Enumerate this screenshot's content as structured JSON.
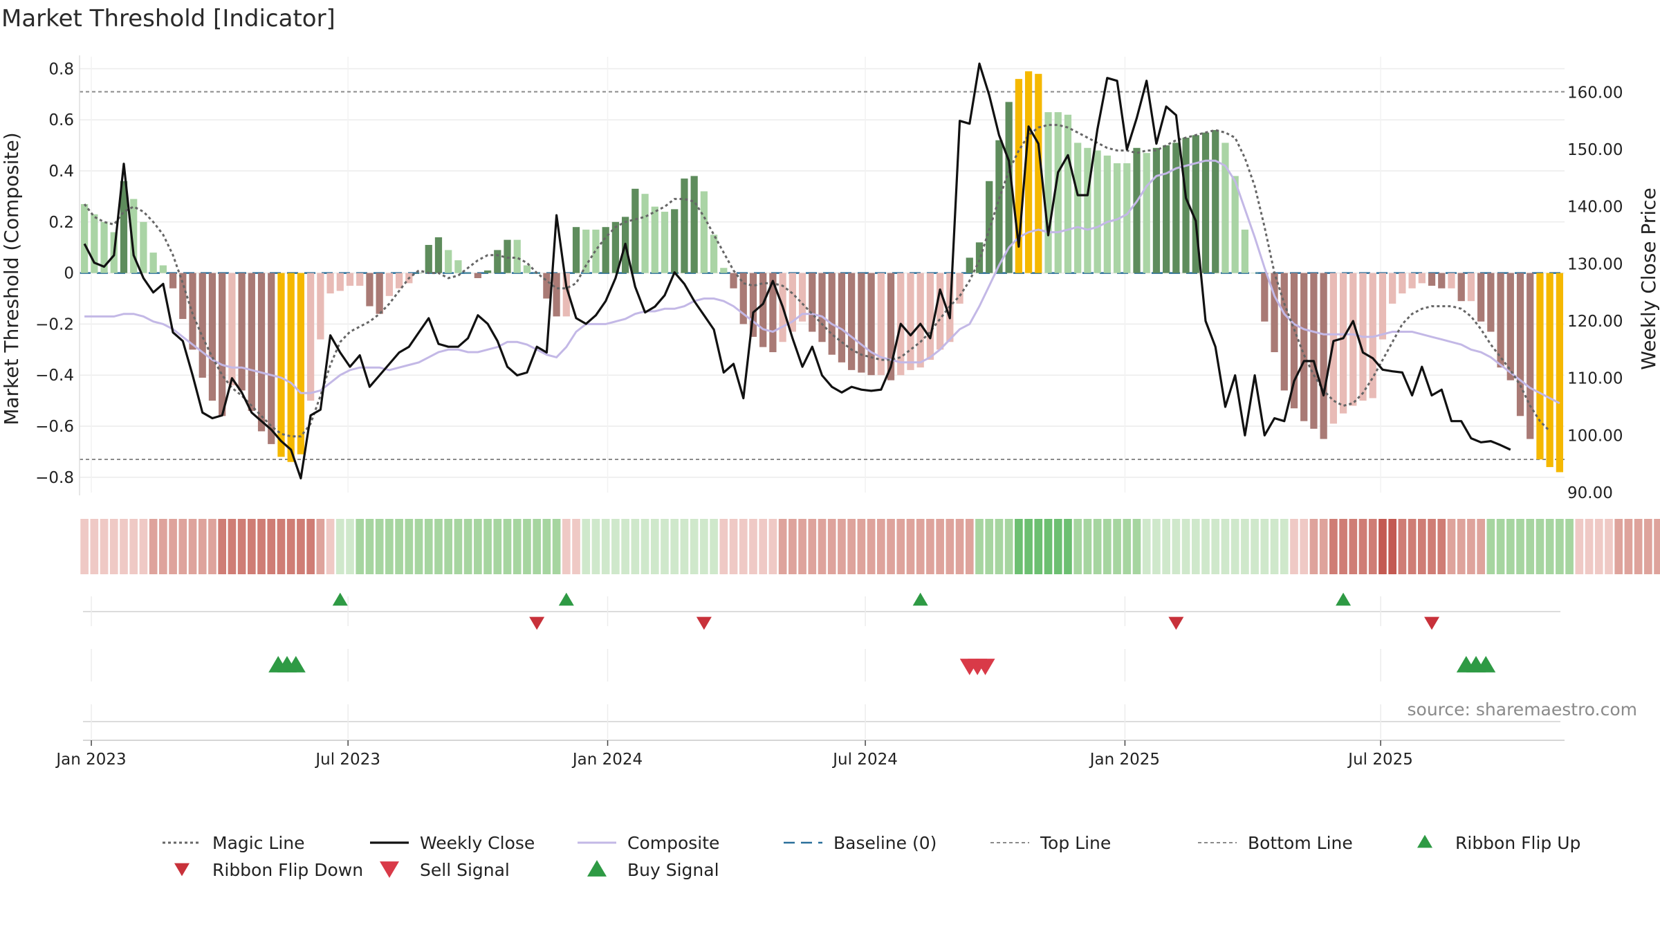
{
  "chart_data": {
    "type": "bar",
    "title": "Market Threshold [Indicator]",
    "ylabel": "Market Threshold (Composite)",
    "ylabel_right": "Weekly Close Price",
    "ylim": [
      -0.86,
      0.82
    ],
    "ylim_right": [
      90,
      165
    ],
    "y_ticks": [
      0.8,
      0.6,
      0.4,
      0.2,
      0,
      -0.2,
      -0.4,
      -0.6,
      -0.8
    ],
    "y_tick_labels": [
      "0.8",
      "0.6",
      "0.4",
      "0.2",
      "0",
      "−0.2",
      "−0.4",
      "−0.6",
      "−0.8"
    ],
    "y_right_ticks": [
      160,
      150,
      140,
      130,
      120,
      110,
      100,
      90
    ],
    "y_right_tick_labels": [
      "160.00",
      "150.00",
      "140.00",
      "130.00",
      "120.00",
      "110.00",
      "100.00",
      "90.00"
    ],
    "x_tick_labels": [
      "Jan 2023",
      "Jul 2023",
      "Jan 2024",
      "Jul 2024",
      "Jan 2025",
      "Jul 2025"
    ],
    "x_tick_weeks": [
      1.2,
      27.3,
      53.7,
      79.9,
      106.3,
      132.3
    ],
    "top_line": 0.71,
    "bottom_line": -0.73,
    "source": "source: sharemaestro.com",
    "grid": true,
    "legend_position": "bottom",
    "colors": {
      "strong_green": "#5e8c5c",
      "light_green": "#aad4a5",
      "strong_red": "#a97a75",
      "light_red": "#e8bbb6",
      "extreme": "#f5b800",
      "magic": "#666666",
      "close": "#111111",
      "composite": "#c3b8e6",
      "baseline": "#2a6f9a",
      "flip_up": "#2e9a44",
      "flip_down": "#c8313a",
      "buy": "#2e9a44",
      "sell": "#d93a48"
    },
    "composite_bars": [
      0.27,
      0.23,
      0.2,
      0.16,
      0.36,
      0.29,
      0.2,
      0.08,
      0.03,
      -0.06,
      -0.18,
      -0.3,
      -0.41,
      -0.5,
      -0.56,
      -0.44,
      -0.46,
      -0.54,
      -0.62,
      -0.67,
      -0.72,
      -0.74,
      -0.71,
      -0.5,
      -0.26,
      -0.08,
      -0.07,
      -0.05,
      -0.05,
      -0.13,
      -0.16,
      -0.09,
      -0.06,
      -0.04,
      0.0,
      0.11,
      0.14,
      0.09,
      0.05,
      0.0,
      -0.02,
      0.01,
      0.09,
      0.13,
      0.13,
      0.03,
      0.0,
      -0.1,
      -0.17,
      -0.17,
      0.18,
      0.17,
      0.17,
      0.18,
      0.2,
      0.22,
      0.33,
      0.31,
      0.26,
      0.24,
      0.25,
      0.37,
      0.38,
      0.32,
      0.15,
      0.02,
      -0.06,
      -0.2,
      -0.25,
      -0.29,
      -0.31,
      -0.27,
      -0.23,
      -0.19,
      -0.23,
      -0.27,
      -0.32,
      -0.35,
      -0.38,
      -0.39,
      -0.4,
      -0.4,
      -0.42,
      -0.4,
      -0.38,
      -0.37,
      -0.34,
      -0.3,
      -0.27,
      -0.12,
      0.06,
      0.12,
      0.36,
      0.52,
      0.67,
      0.76,
      0.79,
      0.78,
      0.63,
      0.63,
      0.62,
      0.51,
      0.49,
      0.48,
      0.46,
      0.43,
      0.43,
      0.49,
      0.47,
      0.49,
      0.5,
      0.51,
      0.53,
      0.54,
      0.55,
      0.56,
      0.51,
      0.38,
      0.17,
      0.0,
      -0.19,
      -0.31,
      -0.46,
      -0.53,
      -0.58,
      -0.61,
      -0.65,
      -0.59,
      -0.55,
      -0.52,
      -0.5,
      -0.49,
      -0.26,
      -0.12,
      -0.08,
      -0.06,
      -0.04,
      -0.05,
      -0.06,
      -0.06,
      -0.11,
      -0.11,
      -0.19,
      -0.23,
      -0.37,
      -0.42,
      -0.56,
      -0.65,
      -0.73,
      -0.76,
      -0.78
    ],
    "weekly_close": [
      133.5,
      130.2,
      129.5,
      131.5,
      147.5,
      131.5,
      127.5,
      125,
      126.5,
      118,
      116.5,
      110.5,
      104,
      103,
      103.5,
      110,
      107.5,
      104,
      102.5,
      101,
      99,
      97.5,
      92.5,
      103.5,
      104.5,
      117.5,
      114.5,
      112,
      114,
      108.5,
      110.5,
      112.5,
      114.5,
      115.5,
      118,
      120.5,
      116,
      115.5,
      115.5,
      117,
      121,
      119.5,
      116.5,
      112,
      110.5,
      111,
      115.5,
      114.5,
      138.5,
      126,
      120.5,
      119.5,
      121,
      123.5,
      127.5,
      133.5,
      126,
      121.5,
      122.5,
      124.5,
      128.5,
      126.5,
      123.5,
      121,
      118.5,
      111,
      112.5,
      106.5,
      121.5,
      123,
      127,
      122.5,
      117,
      112,
      115.5,
      110.5,
      108.5,
      107.5,
      108.5,
      108,
      107.8,
      108,
      112,
      119.5,
      117.5,
      119.5,
      117,
      125.5,
      120.5,
      155,
      154.5,
      165,
      159.5,
      152.5,
      148,
      133,
      154,
      151,
      135,
      146,
      149,
      142,
      142,
      153.5,
      162.5,
      162,
      150,
      155.5,
      162,
      151,
      157.5,
      156,
      141.5,
      137.5,
      120,
      115.5,
      105,
      110.5,
      100,
      110.5,
      100,
      103,
      102.5,
      109.5,
      113,
      113,
      107,
      116.5,
      117,
      120,
      114.5,
      113.5,
      111.5,
      111.2,
      111,
      107,
      112,
      107,
      108,
      102.5,
      102.5,
      99.5,
      98.8,
      99,
      98.3,
      97.5
    ],
    "composite_line": [
      -0.17,
      -0.17,
      -0.17,
      -0.17,
      -0.16,
      -0.16,
      -0.17,
      -0.19,
      -0.2,
      -0.22,
      -0.25,
      -0.28,
      -0.31,
      -0.34,
      -0.36,
      -0.37,
      -0.37,
      -0.38,
      -0.39,
      -0.4,
      -0.41,
      -0.43,
      -0.47,
      -0.47,
      -0.46,
      -0.43,
      -0.4,
      -0.38,
      -0.37,
      -0.37,
      -0.37,
      -0.38,
      -0.37,
      -0.36,
      -0.35,
      -0.33,
      -0.31,
      -0.3,
      -0.3,
      -0.31,
      -0.31,
      -0.3,
      -0.29,
      -0.27,
      -0.27,
      -0.28,
      -0.3,
      -0.32,
      -0.33,
      -0.29,
      -0.23,
      -0.2,
      -0.2,
      -0.2,
      -0.19,
      -0.18,
      -0.16,
      -0.15,
      -0.15,
      -0.14,
      -0.14,
      -0.13,
      -0.11,
      -0.1,
      -0.1,
      -0.11,
      -0.13,
      -0.16,
      -0.19,
      -0.22,
      -0.23,
      -0.21,
      -0.19,
      -0.16,
      -0.16,
      -0.17,
      -0.2,
      -0.22,
      -0.25,
      -0.28,
      -0.31,
      -0.33,
      -0.34,
      -0.35,
      -0.35,
      -0.35,
      -0.33,
      -0.3,
      -0.26,
      -0.22,
      -0.2,
      -0.13,
      -0.05,
      0.03,
      0.1,
      0.14,
      0.16,
      0.17,
      0.16,
      0.16,
      0.17,
      0.18,
      0.17,
      0.18,
      0.2,
      0.21,
      0.23,
      0.28,
      0.34,
      0.38,
      0.39,
      0.41,
      0.42,
      0.43,
      0.44,
      0.44,
      0.42,
      0.36,
      0.25,
      0.14,
      0.02,
      -0.09,
      -0.16,
      -0.2,
      -0.22,
      -0.23,
      -0.24,
      -0.24,
      -0.24,
      -0.24,
      -0.25,
      -0.25,
      -0.24,
      -0.23,
      -0.23,
      -0.23,
      -0.24,
      -0.25,
      -0.26,
      -0.27,
      -0.28,
      -0.3,
      -0.31,
      -0.33,
      -0.36,
      -0.39,
      -0.42,
      -0.45,
      -0.47,
      -0.49,
      -0.51
    ],
    "magic_line": [
      0.27,
      0.22,
      0.2,
      0.19,
      0.24,
      0.26,
      0.24,
      0.2,
      0.15,
      0.07,
      -0.04,
      -0.16,
      -0.25,
      -0.33,
      -0.4,
      -0.45,
      -0.48,
      -0.52,
      -0.56,
      -0.6,
      -0.63,
      -0.64,
      -0.64,
      -0.59,
      -0.48,
      -0.36,
      -0.27,
      -0.23,
      -0.21,
      -0.19,
      -0.16,
      -0.12,
      -0.07,
      -0.02,
      0.01,
      0.0,
      0.0,
      -0.02,
      -0.01,
      0.02,
      0.05,
      0.07,
      0.07,
      0.06,
      0.06,
      0.04,
      0.0,
      -0.03,
      -0.06,
      -0.06,
      -0.04,
      0.03,
      0.09,
      0.14,
      0.18,
      0.2,
      0.21,
      0.22,
      0.24,
      0.26,
      0.29,
      0.29,
      0.28,
      0.22,
      0.15,
      0.08,
      0.01,
      -0.04,
      -0.05,
      -0.04,
      -0.04,
      -0.05,
      -0.08,
      -0.12,
      -0.16,
      -0.2,
      -0.24,
      -0.27,
      -0.3,
      -0.32,
      -0.33,
      -0.34,
      -0.34,
      -0.33,
      -0.3,
      -0.27,
      -0.23,
      -0.18,
      -0.13,
      -0.09,
      -0.03,
      0.05,
      0.17,
      0.29,
      0.4,
      0.48,
      0.54,
      0.57,
      0.58,
      0.58,
      0.57,
      0.55,
      0.53,
      0.51,
      0.49,
      0.48,
      0.48,
      0.47,
      0.48,
      0.48,
      0.5,
      0.52,
      0.53,
      0.54,
      0.55,
      0.56,
      0.55,
      0.53,
      0.45,
      0.34,
      0.18,
      0.0,
      -0.12,
      -0.22,
      -0.32,
      -0.4,
      -0.46,
      -0.5,
      -0.52,
      -0.51,
      -0.47,
      -0.41,
      -0.34,
      -0.27,
      -0.2,
      -0.16,
      -0.14,
      -0.13,
      -0.13,
      -0.13,
      -0.14,
      -0.17,
      -0.22,
      -0.28,
      -0.33,
      -0.38,
      -0.44,
      -0.52,
      -0.58,
      -0.62
    ],
    "ribbon": [
      -1,
      -1,
      -1,
      -1,
      -1,
      -1,
      -1,
      -2,
      -2,
      -2,
      -2,
      -2,
      -2,
      -2,
      -3,
      -3,
      -3,
      -3,
      -3,
      -3,
      -3,
      -3,
      -3,
      -3,
      -2,
      -1,
      1,
      1,
      2,
      2,
      2,
      2,
      2,
      2,
      2,
      2,
      2,
      2,
      2,
      2,
      2,
      2,
      2,
      2,
      2,
      2,
      2,
      2,
      2,
      -1,
      -1,
      1,
      1,
      1,
      1,
      1,
      1,
      1,
      1,
      1,
      1,
      1,
      1,
      1,
      1,
      -1,
      -1,
      -1,
      -1,
      -1,
      -1,
      -2,
      -2,
      -2,
      -2,
      -2,
      -2,
      -2,
      -2,
      -2,
      -2,
      -2,
      -2,
      -2,
      -2,
      -2,
      -2,
      -2,
      -2,
      -2,
      -2,
      2,
      2,
      2,
      2,
      3,
      3,
      3,
      3,
      3,
      3,
      2,
      2,
      2,
      2,
      2,
      2,
      2,
      1,
      1,
      1,
      1,
      1,
      1,
      1,
      1,
      1,
      1,
      1,
      1,
      1,
      1,
      1,
      -1,
      -1,
      -2,
      -2,
      -3,
      -3,
      -3,
      -3,
      -3,
      -4,
      -4,
      -3,
      -3,
      -3,
      -3,
      -3,
      -2,
      -2,
      -2,
      -2,
      2,
      2,
      2,
      2,
      2,
      2,
      2,
      2,
      2,
      -1,
      -1,
      -1,
      -1,
      -2,
      -2,
      -2,
      -2,
      -2,
      -2,
      -2,
      -2
    ],
    "ribbon_flip_up": [
      26.5,
      49.5,
      85.5,
      128.5
    ],
    "ribbon_flip_down": [
      46.5,
      63.5,
      111.5,
      137.5
    ],
    "buy_signal": [
      20.2,
      21.1,
      22.0,
      141.0,
      142.0,
      143.0
    ],
    "sell_signal": [
      90.5,
      91.3,
      92.1
    ],
    "legend": [
      {
        "label": "Magic Line",
        "kind": "dotted"
      },
      {
        "label": "Weekly Close",
        "kind": "solid"
      },
      {
        "label": "Composite",
        "kind": "composite"
      },
      {
        "label": "Baseline (0)",
        "kind": "dashed"
      },
      {
        "label": "Top Line",
        "kind": "thin-dashed"
      },
      {
        "label": "Bottom Line",
        "kind": "thin-dashed"
      },
      {
        "label": "Ribbon Flip Up",
        "kind": "flip-up"
      },
      {
        "label": "Ribbon Flip Down",
        "kind": "flip-down"
      },
      {
        "label": "Sell Signal",
        "kind": "sell"
      },
      {
        "label": "Buy Signal",
        "kind": "buy"
      }
    ]
  }
}
